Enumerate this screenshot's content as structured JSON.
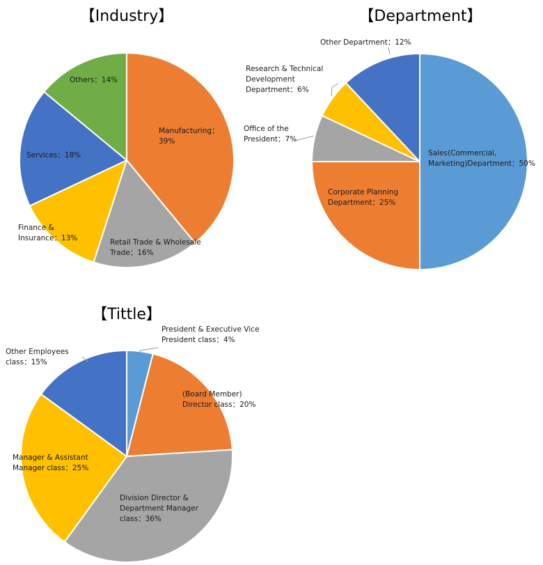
{
  "chart_data": [
    {
      "type": "pie",
      "title": "【Industry】",
      "slices": [
        {
          "label": "Manufacturing：39%",
          "value": 39,
          "color": "#ED7D31"
        },
        {
          "label": "Retail Trade & Wholesale Trade：16%",
          "value": 16,
          "color": "#A5A5A5"
        },
        {
          "label": "Finance & Insurance：13%",
          "value": 13,
          "color": "#FFC000"
        },
        {
          "label": "Services：18%",
          "value": 18,
          "color": "#4472C4"
        },
        {
          "label": "Others：14%",
          "value": 14,
          "color": "#70AD47"
        }
      ]
    },
    {
      "type": "pie",
      "title": "【Department】",
      "slices": [
        {
          "label": "Sales(Commercial, Marketing)Department：50%",
          "value": 50,
          "color": "#5B9BD5"
        },
        {
          "label": "Corporate Planning Department：25%",
          "value": 25,
          "color": "#ED7D31"
        },
        {
          "label": "Office of the President：7%",
          "value": 7,
          "color": "#A5A5A5"
        },
        {
          "label": "Research & Technical Development Department：6%",
          "value": 6,
          "color": "#FFC000"
        },
        {
          "label": "Other Department：12%",
          "value": 12,
          "color": "#4472C4"
        }
      ]
    },
    {
      "type": "pie",
      "title": "【Tittle】",
      "slices": [
        {
          "label": "President & Executive Vice President class：4%",
          "value": 4,
          "color": "#5B9BD5"
        },
        {
          "label": "(Board Member) Director class：20%",
          "value": 20,
          "color": "#ED7D31"
        },
        {
          "label": "Division Director & Department Manager class：36%",
          "value": 36,
          "color": "#A5A5A5"
        },
        {
          "label": "Manager & Assistant Manager class：25%",
          "value": 25,
          "color": "#FFC000"
        },
        {
          "label": "Other Employees class：15%",
          "value": 15,
          "color": "#4472C4"
        }
      ]
    }
  ],
  "label_lines": [
    [
      [
        "Manufacturing：",
        "39%"
      ],
      [
        "Retail Trade & Wholesale",
        "Trade：16%"
      ],
      [
        "Finance &",
        "Insurance：13%"
      ],
      [
        "Services：18%"
      ],
      [
        "Others：14%"
      ]
    ],
    [
      [
        "Sales(Commercial,",
        "Marketing)Department：50%"
      ],
      [
        "Corporate Planning",
        "Department：25%"
      ],
      [
        "Office of the",
        "President：7%"
      ],
      [
        "Research & Technical",
        "Development",
        "Department：6%"
      ],
      [
        "Other Department：12%"
      ]
    ],
    [
      [
        "President & Executive Vice",
        "President class：4%"
      ],
      [
        "(Board Member)",
        "Director class：20%"
      ],
      [
        "Division Director &",
        "Department Manager",
        "class：36%"
      ],
      [
        "Manager & Assistant",
        "Manager class：25%"
      ],
      [
        "Other Employees",
        "class：15%"
      ]
    ]
  ]
}
